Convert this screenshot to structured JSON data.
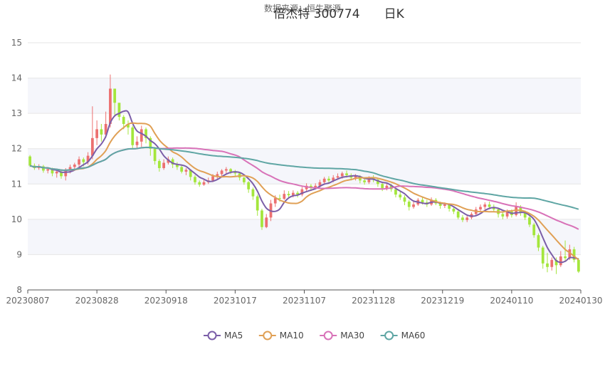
{
  "chart_data": {
    "type": "candlestick",
    "title": "倍杰特 300774　　日K",
    "subtitle": "数据来源：恒生聚源",
    "ylim": [
      8,
      15
    ],
    "yticks": [
      8,
      9,
      10,
      11,
      12,
      13,
      14,
      15
    ],
    "xlabels": [
      "20230807",
      "20230828",
      "20230918",
      "20231017",
      "20231107",
      "20231128",
      "20231219",
      "20240110",
      "20240130"
    ],
    "grid_bands": true,
    "legend_position": "bottom",
    "colors": {
      "up": "#ec7070",
      "down": "#a4e63c",
      "MA5": "#7b5ea8",
      "MA10": "#e0a055",
      "MA30": "#d872b8",
      "MA60": "#5fa6a4"
    },
    "legend": [
      "MA5",
      "MA10",
      "MA30",
      "MA60"
    ],
    "candles": [
      [
        11.78,
        11.52,
        11.82,
        11.48
      ],
      [
        11.52,
        11.45,
        11.58,
        11.4
      ],
      [
        11.45,
        11.5,
        11.56,
        11.4
      ],
      [
        11.5,
        11.38,
        11.54,
        11.32
      ],
      [
        11.38,
        11.42,
        11.48,
        11.3
      ],
      [
        11.42,
        11.3,
        11.46,
        11.22
      ],
      [
        11.3,
        11.35,
        11.4,
        11.18
      ],
      [
        11.35,
        11.22,
        11.4,
        11.15
      ],
      [
        11.22,
        11.38,
        11.45,
        11.1
      ],
      [
        11.38,
        11.48,
        11.55,
        11.3
      ],
      [
        11.48,
        11.55,
        11.6,
        11.4
      ],
      [
        11.55,
        11.7,
        11.78,
        11.45
      ],
      [
        11.7,
        11.62,
        11.75,
        11.5
      ],
      [
        11.62,
        11.8,
        11.9,
        11.55
      ],
      [
        11.8,
        12.3,
        13.2,
        11.7
      ],
      [
        12.3,
        12.55,
        12.8,
        12.1
      ],
      [
        12.55,
        12.4,
        12.7,
        12.2
      ],
      [
        12.4,
        12.7,
        13.05,
        12.3
      ],
      [
        12.7,
        13.7,
        14.1,
        12.6
      ],
      [
        13.7,
        13.3,
        13.45,
        12.9
      ],
      [
        13.3,
        12.9,
        13.15,
        12.8
      ],
      [
        12.9,
        12.7,
        12.95,
        12.55
      ],
      [
        12.7,
        12.6,
        12.8,
        12.4
      ],
      [
        12.6,
        12.1,
        12.65,
        12.0
      ],
      [
        12.1,
        12.2,
        12.35,
        12.0
      ],
      [
        12.2,
        12.55,
        12.65,
        12.05
      ],
      [
        12.55,
        12.3,
        12.6,
        12.15
      ],
      [
        12.3,
        12.0,
        12.35,
        11.8
      ],
      [
        12.0,
        11.65,
        12.05,
        11.55
      ],
      [
        11.65,
        11.45,
        11.7,
        11.35
      ],
      [
        11.45,
        11.6,
        11.7,
        11.4
      ],
      [
        11.6,
        11.7,
        11.78,
        11.55
      ],
      [
        11.7,
        11.55,
        11.75,
        11.45
      ],
      [
        11.55,
        11.48,
        11.62,
        11.4
      ],
      [
        11.48,
        11.35,
        11.55,
        11.3
      ],
      [
        11.35,
        11.4,
        11.45,
        11.25
      ],
      [
        11.4,
        11.2,
        11.42,
        11.1
      ],
      [
        11.2,
        11.05,
        11.25,
        10.98
      ],
      [
        11.05,
        10.98,
        11.1,
        10.92
      ],
      [
        10.98,
        11.05,
        11.12,
        10.95
      ],
      [
        11.05,
        11.1,
        11.18,
        11.0
      ],
      [
        11.1,
        11.22,
        11.28,
        11.05
      ],
      [
        11.22,
        11.28,
        11.35,
        11.15
      ],
      [
        11.28,
        11.38,
        11.42,
        11.2
      ],
      [
        11.38,
        11.42,
        11.48,
        11.3
      ],
      [
        11.42,
        11.35,
        11.45,
        11.28
      ],
      [
        11.35,
        11.3,
        11.4,
        11.22
      ],
      [
        11.3,
        11.18,
        11.32,
        11.1
      ],
      [
        11.18,
        11.05,
        11.2,
        10.98
      ],
      [
        11.05,
        10.85,
        11.08,
        10.75
      ],
      [
        10.85,
        10.65,
        10.9,
        10.55
      ],
      [
        10.65,
        10.25,
        10.7,
        10.1
      ],
      [
        10.25,
        9.78,
        10.3,
        9.7
      ],
      [
        9.78,
        10.05,
        10.15,
        9.75
      ],
      [
        10.05,
        10.45,
        10.55,
        9.95
      ],
      [
        10.45,
        10.6,
        10.68,
        10.35
      ],
      [
        10.6,
        10.58,
        10.7,
        10.5
      ],
      [
        10.58,
        10.72,
        10.82,
        10.55
      ],
      [
        10.72,
        10.68,
        10.8,
        10.6
      ],
      [
        10.68,
        10.75,
        10.82,
        10.62
      ],
      [
        10.75,
        10.7,
        10.8,
        10.62
      ],
      [
        10.7,
        10.85,
        10.92,
        10.65
      ],
      [
        10.85,
        10.95,
        11.02,
        10.8
      ],
      [
        10.95,
        10.88,
        11.0,
        10.8
      ],
      [
        10.88,
        10.95,
        11.02,
        10.85
      ],
      [
        10.95,
        11.05,
        11.12,
        10.9
      ],
      [
        11.05,
        11.15,
        11.2,
        10.98
      ],
      [
        11.15,
        11.1,
        11.22,
        11.05
      ],
      [
        11.1,
        11.18,
        11.25,
        11.05
      ],
      [
        11.18,
        11.22,
        11.3,
        11.12
      ],
      [
        11.22,
        11.3,
        11.35,
        11.15
      ],
      [
        11.3,
        11.25,
        11.38,
        11.18
      ],
      [
        11.25,
        11.18,
        11.3,
        11.1
      ],
      [
        11.18,
        11.22,
        11.28,
        11.1
      ],
      [
        11.22,
        11.1,
        11.25,
        11.02
      ],
      [
        11.1,
        11.05,
        11.15,
        10.98
      ],
      [
        11.05,
        11.18,
        11.22,
        11.0
      ],
      [
        11.18,
        11.12,
        11.25,
        11.05
      ],
      [
        11.12,
        11.0,
        11.15,
        10.92
      ],
      [
        11.0,
        10.88,
        11.05,
        10.8
      ],
      [
        10.88,
        10.95,
        11.0,
        10.82
      ],
      [
        10.95,
        10.85,
        11.0,
        10.78
      ],
      [
        10.85,
        10.7,
        10.88,
        10.62
      ],
      [
        10.7,
        10.62,
        10.78,
        10.55
      ],
      [
        10.62,
        10.5,
        10.68,
        10.4
      ],
      [
        10.5,
        10.35,
        10.55,
        10.25
      ],
      [
        10.35,
        10.42,
        10.52,
        10.3
      ],
      [
        10.42,
        10.55,
        10.6,
        10.38
      ],
      [
        10.55,
        10.48,
        10.62,
        10.42
      ],
      [
        10.48,
        10.42,
        10.55,
        10.35
      ],
      [
        10.42,
        10.55,
        10.62,
        10.38
      ],
      [
        10.55,
        10.45,
        10.6,
        10.4
      ],
      [
        10.45,
        10.38,
        10.5,
        10.3
      ],
      [
        10.38,
        10.42,
        10.48,
        10.32
      ],
      [
        10.42,
        10.3,
        10.45,
        10.22
      ],
      [
        10.3,
        10.22,
        10.35,
        10.15
      ],
      [
        10.22,
        10.05,
        10.28,
        10.0
      ],
      [
        10.05,
        9.98,
        10.12,
        9.92
      ],
      [
        9.98,
        10.05,
        10.1,
        9.92
      ],
      [
        10.05,
        10.15,
        10.2,
        10.0
      ],
      [
        10.15,
        10.28,
        10.35,
        10.1
      ],
      [
        10.28,
        10.35,
        10.42,
        10.22
      ],
      [
        10.35,
        10.42,
        10.48,
        10.28
      ],
      [
        10.42,
        10.35,
        10.5,
        10.28
      ],
      [
        10.35,
        10.28,
        10.42,
        10.2
      ],
      [
        10.28,
        10.15,
        10.32,
        10.05
      ],
      [
        10.15,
        10.08,
        10.2,
        10.0
      ],
      [
        10.08,
        10.22,
        10.28,
        10.02
      ],
      [
        10.22,
        10.12,
        10.28,
        10.05
      ],
      [
        10.12,
        10.35,
        10.48,
        10.08
      ],
      [
        10.35,
        10.2,
        10.4,
        10.1
      ],
      [
        10.2,
        10.05,
        10.25,
        9.98
      ],
      [
        10.05,
        9.85,
        10.1,
        9.78
      ],
      [
        9.85,
        9.55,
        9.9,
        9.48
      ],
      [
        9.55,
        9.2,
        9.6,
        9.1
      ],
      [
        9.2,
        8.75,
        9.25,
        8.6
      ],
      [
        8.75,
        8.65,
        9.05,
        8.5
      ],
      [
        8.65,
        8.85,
        8.92,
        8.55
      ],
      [
        8.85,
        8.7,
        8.92,
        8.45
      ],
      [
        8.7,
        8.95,
        9.1,
        8.65
      ],
      [
        8.95,
        8.9,
        9.4,
        8.82
      ],
      [
        8.9,
        9.15,
        9.28,
        8.85
      ],
      [
        9.15,
        8.85,
        9.22,
        8.78
      ],
      [
        8.85,
        8.52,
        8.9,
        8.48
      ]
    ]
  }
}
